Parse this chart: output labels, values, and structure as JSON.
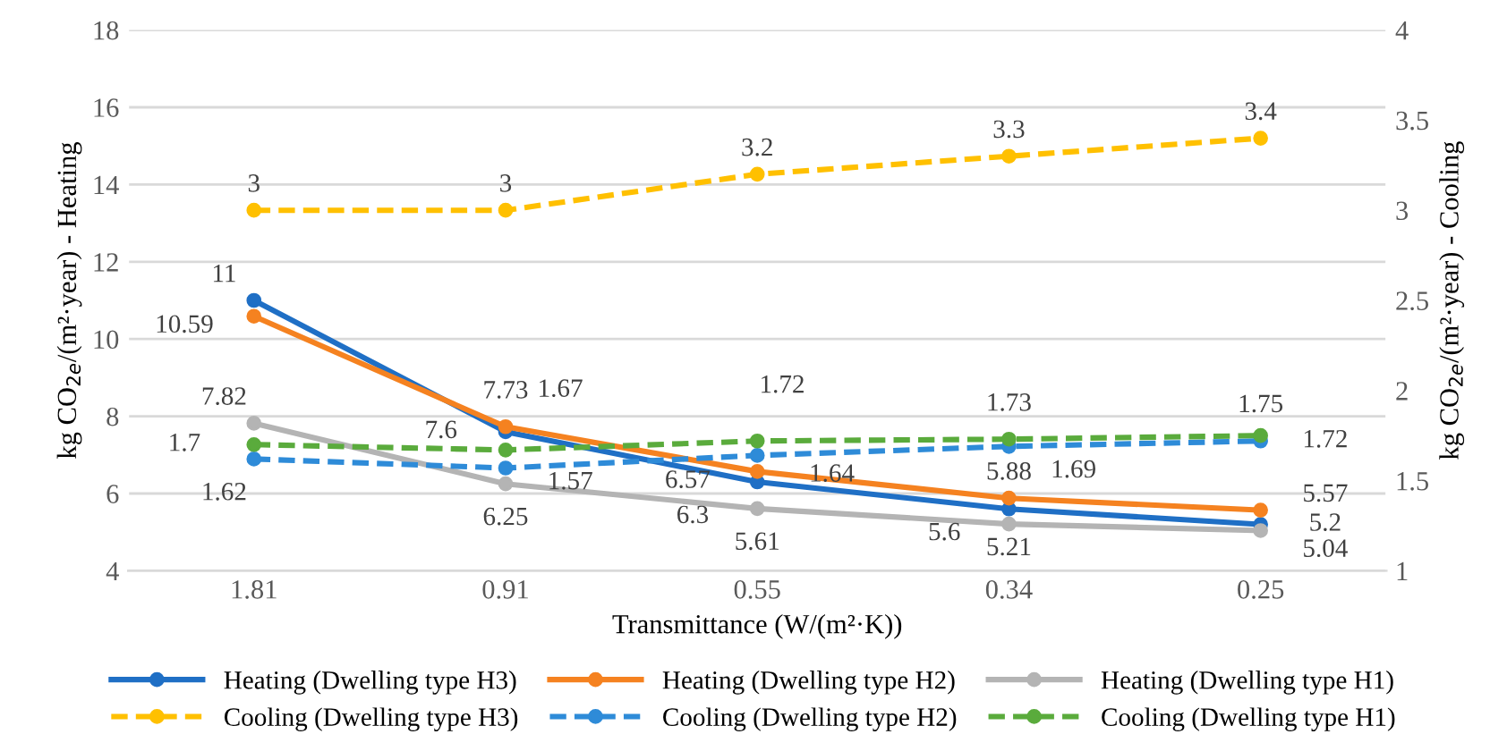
{
  "chart_data": {
    "type": "line",
    "xlabel": "Transmittance (W/(m²·K))",
    "ylabel": "kg CO$_{2e}$/(m²·year) - Heating",
    "y2label": "kg CO$_{2e}$/(m²·year) - Cooling",
    "categories": [
      "1.81",
      "0.91",
      "0.55",
      "0.34",
      "0.25"
    ],
    "ylim": [
      4,
      18
    ],
    "yticks": [
      4,
      6,
      8,
      10,
      12,
      14,
      16,
      18
    ],
    "y2lim": [
      1,
      4
    ],
    "y2ticks": [
      1,
      1.5,
      2,
      2.5,
      3,
      3.5,
      4
    ],
    "grid": "y",
    "legend": "bottom",
    "marker": "circle",
    "data_labels": true,
    "series": [
      {
        "name": "Heating (Dwelling type H3)",
        "color": "#1f6fc5",
        "values": [
          11,
          7.6,
          6.3,
          5.6,
          5.2
        ]
      },
      {
        "name": "Heating (Dwelling type H2)",
        "color": "#f58220",
        "values": [
          10.59,
          7.73,
          6.57,
          5.88,
          5.57
        ]
      },
      {
        "name": "Heating (Dwelling type H1)",
        "color": "#b4b4b4",
        "values": [
          7.82,
          6.25,
          5.61,
          5.21,
          5.04
        ]
      },
      {
        "name": "Cooling (Dwelling type H3)",
        "color": "#ffc000",
        "line_style": "dashed",
        "axis": "y2",
        "values": [
          3,
          3,
          3.2,
          3.3,
          3.4
        ]
      },
      {
        "name": "Cooling (Dwelling type H2)",
        "color": "#2e8bd8",
        "line_style": "dashed",
        "axis": "y2",
        "values": [
          1.62,
          1.57,
          1.64,
          1.69,
          1.72
        ]
      },
      {
        "name": "Cooling (Dwelling type H1)",
        "color": "#5aab3c",
        "line_style": "dashed",
        "axis": "y2",
        "values": [
          1.7,
          1.67,
          1.72,
          1.73,
          1.75
        ]
      }
    ]
  }
}
